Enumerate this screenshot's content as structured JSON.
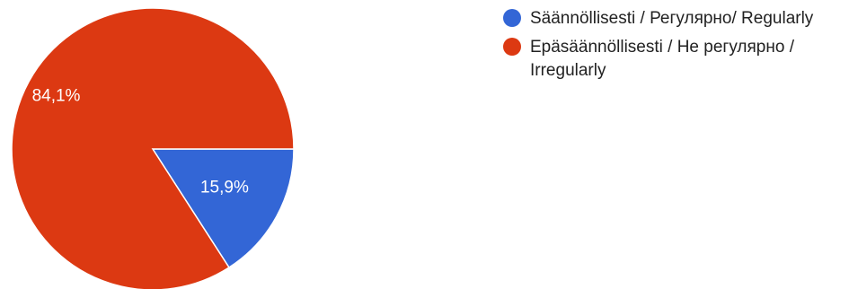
{
  "chart_data": {
    "type": "pie",
    "title": "",
    "legend_position": "top-right",
    "series": [
      {
        "name": "Säännöllisesti / Регулярно/ Regularly",
        "value": 15.9,
        "label": "15,9%",
        "color": "#3366d6"
      },
      {
        "name": "Epäsäännöllisesti / Не регулярно / Irregularly",
        "value": 84.1,
        "label": "84,1%",
        "color": "#dc3912"
      }
    ]
  }
}
